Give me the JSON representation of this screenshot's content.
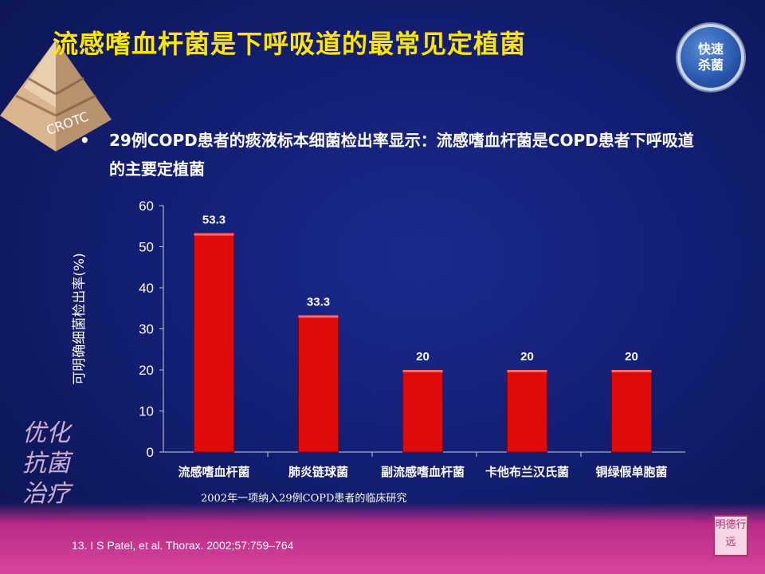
{
  "title": "流感嗜血杆菌是下呼吸道的最常见定植菌",
  "badge": {
    "line1": "快速",
    "line2": "杀菌"
  },
  "logo_text": "CROTC",
  "bullet": {
    "symbol": "•",
    "text": "29例COPD患者的痰液标本细菌检出率显示：流感嗜血杆菌是COPD患者下呼吸道的主要定植菌"
  },
  "study_note": "2002年一项纳入29例COPD患者的临床研究",
  "citation": "13. I S Patel, et al. Thorax. 2002;57:759–764",
  "decor": {
    "calligraphy": "优化抗菌治疗",
    "seal": "明德行远"
  },
  "colors": {
    "title": "#ffe600",
    "bar": "#e00a0a",
    "background": "#141f73",
    "band": "#c4378f"
  },
  "chart_data": {
    "type": "bar",
    "title": "",
    "xlabel": "",
    "ylabel": "可明确细菌检出率(%)",
    "ylim": [
      0,
      60
    ],
    "yticks": [
      0,
      10,
      20,
      30,
      40,
      50,
      60
    ],
    "categories": [
      "流感嗜血杆菌",
      "肺炎链球菌",
      "副流感嗜血杆菌",
      "卡他布兰汉氏菌",
      "铜绿假单胞菌"
    ],
    "values": [
      53.3,
      33.3,
      20,
      20,
      20
    ],
    "data_labels": [
      "53.3",
      "33.3",
      "20",
      "20",
      "20"
    ],
    "grid": false,
    "legend": "none"
  }
}
